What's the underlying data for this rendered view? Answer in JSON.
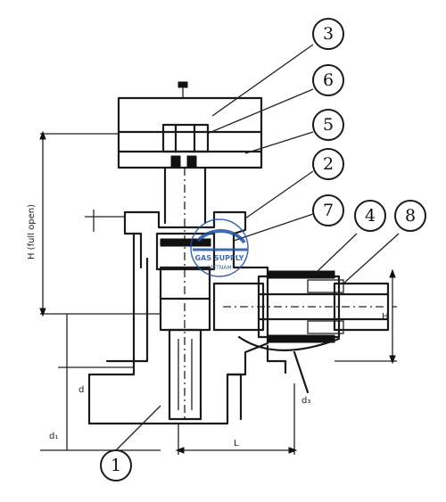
{
  "balloons": [
    {
      "id": "b3",
      "label": "3"
    },
    {
      "id": "b6",
      "label": "6"
    },
    {
      "id": "b5",
      "label": "5"
    },
    {
      "id": "b2",
      "label": "2"
    },
    {
      "id": "b7",
      "label": "7"
    },
    {
      "id": "b4",
      "label": "4"
    },
    {
      "id": "b8",
      "label": "8"
    },
    {
      "id": "b1",
      "label": "1"
    }
  ],
  "dimensions": {
    "vertical_note": "H (full open)",
    "d1": "d₁",
    "d2": "d",
    "d3": "d₃",
    "H": "H",
    "L": "L"
  },
  "watermark": {
    "brand": "GAS SUPPLY",
    "sub": "VIETNAM",
    "color": "#1f4fa0"
  }
}
